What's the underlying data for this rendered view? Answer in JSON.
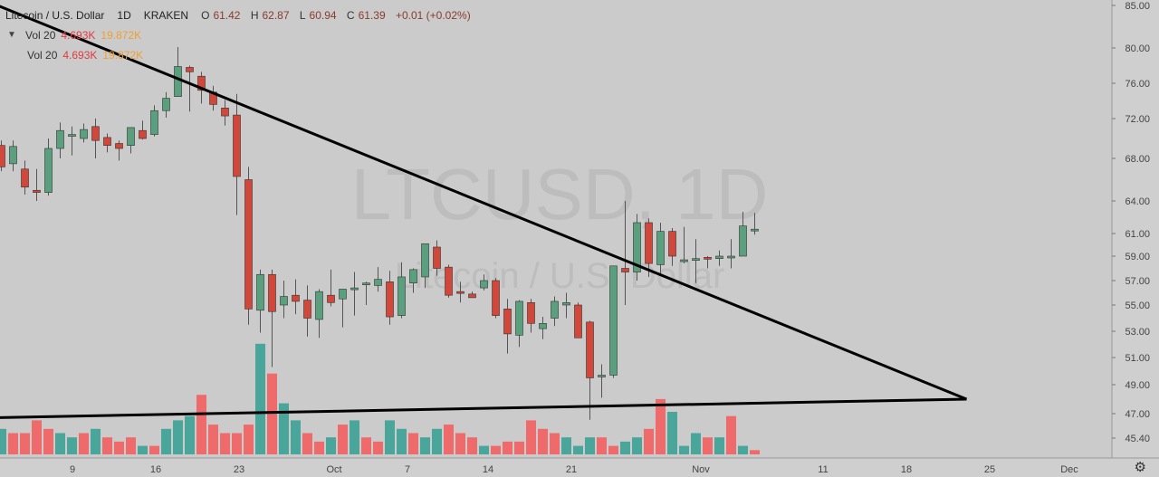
{
  "header": {
    "symbol_title": "Litecoin / U.S. Dollar",
    "resolution": "1D",
    "exchange": "KRAKEN",
    "ohlc": [
      {
        "label": "O",
        "value": "61.42"
      },
      {
        "label": "H",
        "value": "62.87"
      },
      {
        "label": "L",
        "value": "60.94"
      },
      {
        "label": "C",
        "value": "61.39"
      }
    ],
    "change": "+0.01 (+0.02%)",
    "volume_rows": [
      {
        "name": "Vol 20",
        "value_a": "4.693K",
        "value_b": "19.872K"
      },
      {
        "name": "Vol 20",
        "value_a": "4.693K",
        "value_b": "19.872K"
      }
    ]
  },
  "watermark": {
    "ticker": "LTCUSD, 1D",
    "name": "Litecoin / U.S. Dollar"
  },
  "colors": {
    "background": "#cbcbcb",
    "up": "#5ba07e",
    "down": "#d1473a",
    "vol_up": "#4aa59b",
    "vol_down": "#ef6b6b",
    "trendline": "#000000"
  },
  "chart_data": {
    "type": "candlestick",
    "title": "Litecoin / U.S. Dollar",
    "y_ticks": [
      "85.00",
      "80.00",
      "76.00",
      "72.00",
      "68.00",
      "64.00",
      "61.00",
      "59.00",
      "57.00",
      "55.00",
      "53.00",
      "51.00",
      "49.00",
      "47.00",
      "45.40"
    ],
    "x_ticks": [
      "9",
      "16",
      "23",
      "Oct",
      "7",
      "14",
      "21",
      "Nov",
      "11",
      "18",
      "25",
      "Dec"
    ],
    "candles": [
      [
        69.3,
        69.8,
        66.8,
        67.2
      ],
      [
        67.5,
        69.8,
        66.8,
        69.2
      ],
      [
        67.0,
        67.8,
        64.6,
        65.3
      ],
      [
        65.0,
        67.0,
        64.0,
        64.8
      ],
      [
        64.8,
        70.0,
        64.5,
        69.0
      ],
      [
        69.0,
        71.6,
        68.0,
        70.8
      ],
      [
        70.4,
        71.2,
        68.3,
        70.4
      ],
      [
        70.0,
        71.5,
        69.6,
        70.9
      ],
      [
        71.2,
        72.0,
        68.0,
        69.8
      ],
      [
        70.1,
        70.5,
        68.6,
        69.3
      ],
      [
        69.5,
        69.8,
        67.8,
        69.0
      ],
      [
        69.3,
        71.0,
        68.5,
        71.1
      ],
      [
        70.8,
        71.8,
        69.9,
        70.0
      ],
      [
        70.4,
        73.5,
        70.2,
        72.9
      ],
      [
        72.9,
        75.0,
        72.1,
        74.3
      ],
      [
        74.5,
        80.1,
        74.5,
        77.9
      ],
      [
        77.8,
        78.0,
        72.8,
        77.3
      ],
      [
        76.8,
        77.3,
        73.7,
        75.2
      ],
      [
        75.0,
        75.7,
        72.9,
        73.6
      ],
      [
        73.2,
        74.1,
        71.3,
        72.3
      ],
      [
        72.4,
        74.8,
        62.7,
        66.3
      ],
      [
        66.0,
        67.2,
        53.5,
        54.7
      ],
      [
        54.6,
        57.9,
        52.9,
        57.5
      ],
      [
        57.5,
        57.9,
        50.3,
        54.5
      ],
      [
        55.0,
        57.0,
        54.0,
        55.7
      ],
      [
        55.8,
        57.1,
        54.3,
        55.3
      ],
      [
        55.4,
        56.6,
        52.6,
        54.0
      ],
      [
        53.9,
        56.3,
        52.5,
        56.1
      ],
      [
        55.8,
        57.9,
        54.9,
        55.2
      ],
      [
        55.5,
        56.2,
        53.3,
        56.3
      ],
      [
        56.4,
        57.7,
        54.2,
        56.4
      ],
      [
        56.7,
        56.9,
        55.0,
        56.8
      ],
      [
        56.6,
        58.1,
        56.1,
        57.1
      ],
      [
        56.9,
        57.8,
        53.5,
        54.1
      ],
      [
        54.2,
        58.5,
        54.0,
        57.3
      ],
      [
        56.8,
        58.0,
        56.0,
        57.9
      ],
      [
        57.3,
        60.0,
        56.4,
        60.1
      ],
      [
        59.8,
        60.4,
        57.4,
        58.0
      ],
      [
        58.1,
        58.3,
        55.6,
        55.8
      ],
      [
        56.1,
        56.9,
        55.2,
        56.0
      ],
      [
        55.9,
        56.1,
        55.6,
        55.6
      ],
      [
        56.4,
        57.5,
        56.2,
        57.0
      ],
      [
        57.0,
        57.2,
        54.0,
        54.2
      ],
      [
        54.7,
        55.5,
        51.3,
        52.8
      ],
      [
        52.7,
        55.4,
        51.8,
        55.3
      ],
      [
        55.2,
        55.5,
        52.9,
        53.6
      ],
      [
        53.2,
        54.1,
        52.4,
        53.6
      ],
      [
        54.0,
        55.7,
        53.4,
        55.3
      ],
      [
        55.0,
        56.0,
        54.0,
        55.2
      ],
      [
        55.0,
        55.2,
        52.5,
        52.5
      ],
      [
        53.7,
        53.8,
        46.6,
        49.5
      ],
      [
        49.6,
        50.5,
        48.1,
        49.7
      ],
      [
        49.7,
        58.0,
        49.5,
        58.2
      ],
      [
        58.0,
        64.0,
        55.0,
        57.7
      ],
      [
        57.7,
        62.8,
        57.0,
        62.0
      ],
      [
        62.0,
        62.4,
        57.3,
        58.4
      ],
      [
        58.3,
        62.0,
        57.4,
        61.2
      ],
      [
        61.2,
        61.5,
        58.2,
        59.0
      ],
      [
        58.7,
        61.6,
        58.4,
        58.7
      ],
      [
        58.7,
        60.5,
        56.8,
        58.8
      ],
      [
        58.9,
        59.0,
        58.0,
        58.8
      ],
      [
        58.8,
        59.5,
        58.2,
        59.0
      ],
      [
        58.9,
        60.5,
        58.0,
        59.0
      ],
      [
        59.0,
        63.0,
        59.0,
        61.7
      ],
      [
        61.4,
        62.9,
        60.9,
        61.4
      ]
    ],
    "volumes": [
      6,
      5,
      5,
      8,
      6,
      5,
      4,
      5,
      6,
      4,
      3,
      4,
      2,
      2,
      6,
      8,
      9,
      14,
      7,
      5,
      5,
      7,
      26,
      19,
      12,
      8,
      5,
      3,
      4,
      7,
      8,
      4,
      3,
      8,
      6,
      5,
      4,
      6,
      7,
      5,
      4,
      2,
      2,
      3,
      3,
      8,
      6,
      5,
      4,
      2,
      4,
      4,
      2,
      3,
      4,
      6,
      13,
      10,
      2,
      5,
      4,
      4,
      9,
      2,
      1
    ],
    "volume_dirs": [
      "u",
      "d",
      "d",
      "d",
      "d",
      "u",
      "u",
      "d",
      "u",
      "d",
      "d",
      "d",
      "u",
      "d",
      "u",
      "u",
      "u",
      "d",
      "d",
      "d",
      "d",
      "d",
      "u",
      "d",
      "u",
      "u",
      "d",
      "d",
      "u",
      "d",
      "u",
      "d",
      "d",
      "u",
      "u",
      "d",
      "u",
      "u",
      "d",
      "d",
      "d",
      "u",
      "d",
      "d",
      "d",
      "d",
      "d",
      "d",
      "u",
      "u",
      "u",
      "d",
      "d",
      "u",
      "u",
      "d",
      "d",
      "u",
      "u",
      "u",
      "d",
      "u",
      "d",
      "u",
      "d"
    ],
    "trendline_descending": {
      "from": [
        -3,
        86.5
      ],
      "to": [
        82,
        48.0
      ]
    },
    "trendline_support": {
      "from": [
        -3,
        46.7
      ],
      "to": [
        82,
        48.0
      ]
    }
  },
  "settings_icon": "gear-icon"
}
